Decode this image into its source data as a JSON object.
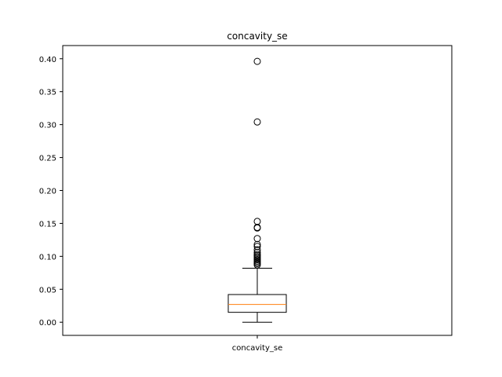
{
  "chart_data": {
    "type": "boxplot",
    "title": "concavity_se",
    "xlabel": "",
    "ylabel": "",
    "categories": [
      "concavity_se"
    ],
    "ylim": [
      -0.02,
      0.42
    ],
    "yticks": [
      0.0,
      0.05,
      0.1,
      0.15,
      0.2,
      0.25,
      0.3,
      0.35,
      0.4
    ],
    "ytick_labels": [
      "0.00",
      "0.05",
      "0.10",
      "0.15",
      "0.20",
      "0.25",
      "0.30",
      "0.35",
      "0.40"
    ],
    "grid": false,
    "box": {
      "whisker_low": 0.0,
      "q1": 0.015,
      "median": 0.027,
      "q3": 0.042,
      "whisker_high": 0.082
    },
    "outliers": [
      0.396,
      0.304,
      0.153,
      0.144,
      0.143,
      0.127,
      0.118,
      0.115,
      0.11,
      0.106,
      0.103,
      0.101,
      0.099,
      0.097,
      0.095,
      0.093,
      0.091,
      0.089,
      0.087
    ],
    "colors": {
      "box": "#000000",
      "median": "#ff7f0e",
      "outlier_edge": "#000000"
    }
  }
}
